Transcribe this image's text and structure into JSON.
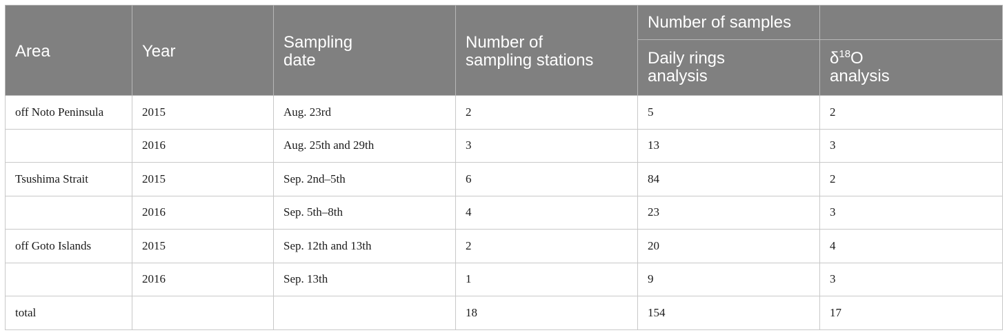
{
  "header": {
    "area": "Area",
    "year": "Year",
    "sampling_date_line1": "Sampling",
    "sampling_date_line2": "date",
    "stations_line1": "Number of",
    "stations_line2": "sampling stations",
    "number_of_samples": "Number of samples",
    "daily_rings_line1": "Daily rings",
    "daily_rings_line2": "analysis",
    "delta_symbol": "δ",
    "delta_superscript": "18",
    "delta_element": "O",
    "delta_line2": "analysis"
  },
  "rows": [
    {
      "area": "off Noto Peninsula",
      "year": "2015",
      "date": "Aug. 23rd",
      "stations": "2",
      "daily_rings": "5",
      "delta18o": "2"
    },
    {
      "area": "",
      "year": "2016",
      "date": "Aug. 25th and 29th",
      "stations": "3",
      "daily_rings": "13",
      "delta18o": "3"
    },
    {
      "area": "Tsushima Strait",
      "year": "2015",
      "date": "Sep. 2nd–5th",
      "stations": "6",
      "daily_rings": "84",
      "delta18o": "2"
    },
    {
      "area": "",
      "year": "2016",
      "date": "Sep. 5th–8th",
      "stations": "4",
      "daily_rings": "23",
      "delta18o": "3"
    },
    {
      "area": "off Goto Islands",
      "year": "2015",
      "date": "Sep. 12th and 13th",
      "stations": "2",
      "daily_rings": "20",
      "delta18o": "4"
    },
    {
      "area": "",
      "year": "2016",
      "date": "Sep. 13th",
      "stations": "1",
      "daily_rings": "9",
      "delta18o": "3"
    },
    {
      "area": "total",
      "year": "",
      "date": "",
      "stations": "18",
      "daily_rings": "154",
      "delta18o": "17"
    }
  ]
}
